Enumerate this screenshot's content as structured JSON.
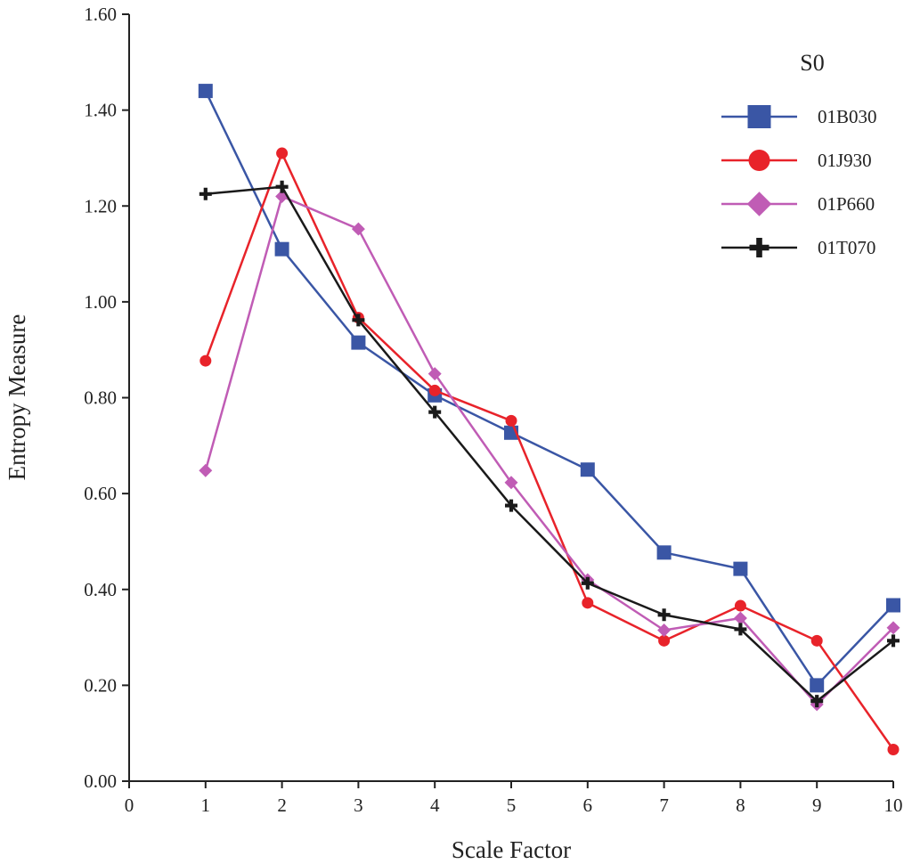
{
  "chart_data": {
    "type": "line",
    "xlabel": "Scale Factor",
    "ylabel": "Entropy Measure",
    "xlim": [
      0,
      10
    ],
    "ylim": [
      0,
      1.6
    ],
    "x_ticks": [
      0,
      1,
      2,
      3,
      4,
      5,
      6,
      7,
      8,
      9,
      10
    ],
    "x_tick_labels": [
      "0",
      "1",
      "2",
      "3",
      "4",
      "5",
      "6",
      "7",
      "8",
      "9",
      "10"
    ],
    "y_ticks": [
      0,
      0.2,
      0.4,
      0.6,
      0.8,
      1.0,
      1.2,
      1.4,
      1.6
    ],
    "y_tick_labels": [
      "0.00",
      "0.20",
      "0.40",
      "0.60",
      "0.80",
      "1.00",
      "1.20",
      "1.40",
      "1.60"
    ],
    "grid": false,
    "legend": {
      "title": "S0",
      "placement": "top-right"
    },
    "x": [
      1,
      2,
      3,
      4,
      5,
      6,
      7,
      8,
      9,
      10
    ],
    "series": [
      {
        "name": "01B030",
        "color": "#3a56a5",
        "marker": "square",
        "values": [
          1.44,
          1.11,
          0.915,
          0.805,
          0.727,
          0.65,
          0.477,
          0.443,
          0.2,
          0.367
        ]
      },
      {
        "name": "01J930",
        "color": "#e8232a",
        "marker": "circle",
        "values": [
          0.877,
          1.31,
          0.967,
          0.815,
          0.752,
          0.372,
          0.293,
          0.366,
          0.293,
          0.066
        ]
      },
      {
        "name": "01P660",
        "color": "#c05cb5",
        "marker": "diamond",
        "values": [
          0.648,
          1.22,
          1.152,
          0.85,
          0.623,
          0.42,
          0.315,
          0.34,
          0.16,
          0.32
        ]
      },
      {
        "name": "01T070",
        "color": "#1a1a1a",
        "marker": "plus",
        "values": [
          1.225,
          1.24,
          0.962,
          0.77,
          0.575,
          0.413,
          0.347,
          0.317,
          0.167,
          0.293
        ]
      }
    ]
  }
}
